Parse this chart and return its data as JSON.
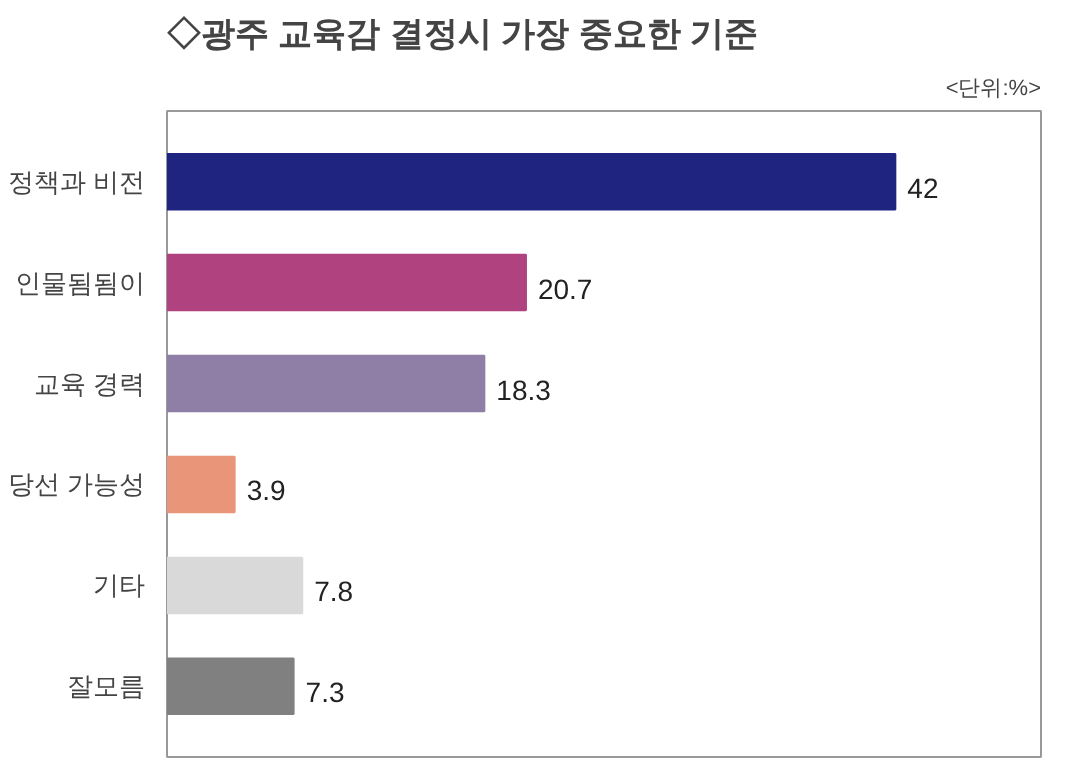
{
  "chart_data": {
    "type": "bar",
    "orientation": "horizontal",
    "title": "◇광주 교육감 결정시 가장 중요한 기준",
    "annotations": [
      "<단위:%>"
    ],
    "categories": [
      "정책과 비전",
      "인물됨됨이",
      "교육 경력",
      "당선 가능성",
      "기타",
      "잘모름"
    ],
    "values": [
      42,
      20.7,
      18.3,
      3.9,
      7.8,
      7.3
    ],
    "colors": [
      "#1f2480",
      "#b0427f",
      "#8f7fa6",
      "#e8957a",
      "#d9d9d9",
      "#808080"
    ],
    "data_labels": true,
    "grid": false
  }
}
